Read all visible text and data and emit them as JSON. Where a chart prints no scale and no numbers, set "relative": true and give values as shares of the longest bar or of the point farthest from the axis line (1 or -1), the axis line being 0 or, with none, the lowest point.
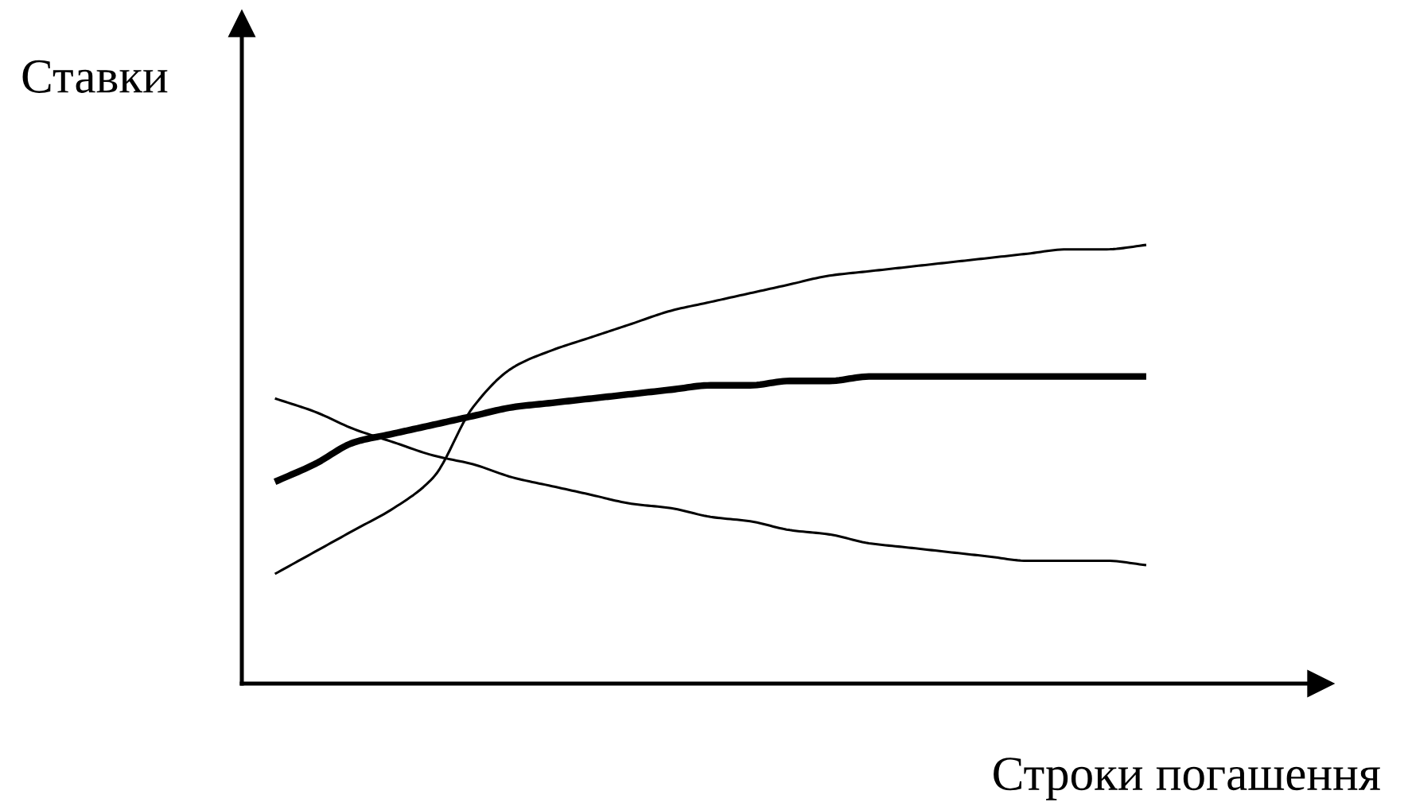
{
  "chart_data": {
    "type": "line",
    "xlabel": "Строки погашення",
    "ylabel": "Ставки",
    "relative": true,
    "line_style": "solid",
    "categories": [
      null,
      null,
      null,
      null,
      null,
      null,
      null,
      null,
      null,
      null,
      null,
      null,
      null,
      null,
      null,
      null,
      null,
      null,
      null,
      null,
      null,
      null,
      null
    ],
    "series": [
      {
        "color": "#000000",
        "values": [
          0.46,
          0.5,
          0.55,
          0.57,
          0.59,
          0.61,
          0.63,
          0.64,
          0.65,
          0.66,
          0.67,
          0.68,
          0.68,
          0.69,
          0.69,
          0.7,
          0.7,
          0.7,
          0.7,
          0.7,
          0.7,
          0.7,
          0.7
        ]
      },
      {
        "color": "#000000",
        "values": [
          0.25,
          0.3,
          0.35,
          0.4,
          0.47,
          0.63,
          0.72,
          0.76,
          0.79,
          0.82,
          0.85,
          0.87,
          0.89,
          0.91,
          0.93,
          0.94,
          0.95,
          0.96,
          0.97,
          0.98,
          0.99,
          0.99,
          1.0
        ]
      },
      {
        "color": "#000000",
        "values": [
          0.65,
          0.62,
          0.58,
          0.55,
          0.52,
          0.5,
          0.47,
          0.45,
          0.43,
          0.41,
          0.4,
          0.38,
          0.37,
          0.35,
          0.34,
          0.32,
          0.31,
          0.3,
          0.29,
          0.28,
          0.28,
          0.28,
          0.27
        ]
      }
    ]
  }
}
